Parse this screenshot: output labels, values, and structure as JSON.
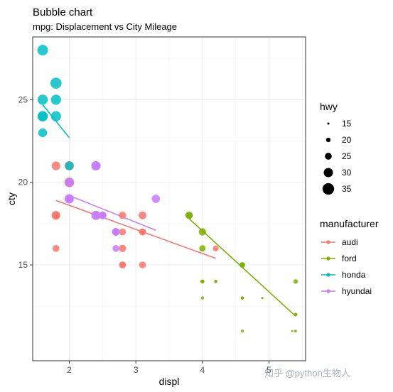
{
  "chart_data": {
    "type": "scatter",
    "title": "Bubble chart",
    "subtitle": "mpg: Displacement vs City Mileage",
    "xlabel": "displ",
    "ylabel": "cty",
    "xlim": [
      1.45,
      5.55
    ],
    "ylim": [
      9.2,
      28.8
    ],
    "x_ticks": [
      2,
      3,
      4,
      5
    ],
    "y_ticks": [
      15,
      20,
      25
    ],
    "grid": true,
    "legend_position": "right",
    "size_legend": {
      "title": "hwy",
      "entries": [
        {
          "label": "15",
          "value": 15
        },
        {
          "label": "20",
          "value": 20
        },
        {
          "label": "25",
          "value": 25
        },
        {
          "label": "30",
          "value": 30
        },
        {
          "label": "35",
          "value": 35
        }
      ]
    },
    "color_legend": {
      "title": "manufacturer",
      "entries": [
        {
          "label": "audi",
          "color": "#F8766D"
        },
        {
          "label": "ford",
          "color": "#7CAE00"
        },
        {
          "label": "honda",
          "color": "#00BFC4"
        },
        {
          "label": "hyundai",
          "color": "#C77CFF"
        }
      ]
    },
    "series": [
      {
        "name": "audi",
        "color": "#F8766D",
        "points": [
          {
            "x": 1.8,
            "y": 18,
            "size": 29
          },
          {
            "x": 1.8,
            "y": 21,
            "size": 29
          },
          {
            "x": 2.0,
            "y": 20,
            "size": 31
          },
          {
            "x": 2.0,
            "y": 21,
            "size": 30
          },
          {
            "x": 2.8,
            "y": 16,
            "size": 26
          },
          {
            "x": 2.8,
            "y": 18,
            "size": 26
          },
          {
            "x": 3.1,
            "y": 18,
            "size": 27
          },
          {
            "x": 1.8,
            "y": 18,
            "size": 26
          },
          {
            "x": 1.8,
            "y": 16,
            "size": 25
          },
          {
            "x": 2.0,
            "y": 20,
            "size": 28
          },
          {
            "x": 2.0,
            "y": 19,
            "size": 27
          },
          {
            "x": 2.8,
            "y": 15,
            "size": 25
          },
          {
            "x": 2.8,
            "y": 17,
            "size": 25
          },
          {
            "x": 3.1,
            "y": 17,
            "size": 25
          },
          {
            "x": 3.1,
            "y": 15,
            "size": 25
          },
          {
            "x": 2.8,
            "y": 15,
            "size": 24
          },
          {
            "x": 3.1,
            "y": 17,
            "size": 25
          },
          {
            "x": 4.2,
            "y": 16,
            "size": 23
          }
        ],
        "trend": [
          [
            1.8,
            18.9
          ],
          [
            4.2,
            15.4
          ]
        ]
      },
      {
        "name": "ford",
        "color": "#7CAE00",
        "points": [
          {
            "x": 3.8,
            "y": 18,
            "size": 26
          },
          {
            "x": 3.8,
            "y": 18,
            "size": 25
          },
          {
            "x": 4.0,
            "y": 17,
            "size": 26
          },
          {
            "x": 4.0,
            "y": 16,
            "size": 24
          },
          {
            "x": 4.6,
            "y": 15,
            "size": 22
          },
          {
            "x": 4.6,
            "y": 15,
            "size": 22
          },
          {
            "x": 5.4,
            "y": 14,
            "size": 20
          },
          {
            "x": 4.0,
            "y": 14,
            "size": 19
          },
          {
            "x": 4.0,
            "y": 13,
            "size": 17
          },
          {
            "x": 4.0,
            "y": 14,
            "size": 17
          },
          {
            "x": 4.2,
            "y": 14,
            "size": 17
          },
          {
            "x": 4.2,
            "y": 14,
            "size": 17
          },
          {
            "x": 4.6,
            "y": 13,
            "size": 17
          },
          {
            "x": 4.6,
            "y": 13,
            "size": 17
          },
          {
            "x": 4.6,
            "y": 13,
            "size": 17
          },
          {
            "x": 5.4,
            "y": 12,
            "size": 18
          },
          {
            "x": 5.4,
            "y": 11,
            "size": 16
          },
          {
            "x": 5.4,
            "y": 11,
            "size": 15
          },
          {
            "x": 4.6,
            "y": 11,
            "size": 17
          },
          {
            "x": 4.9,
            "y": 13,
            "size": 15
          },
          {
            "x": 5.4,
            "y": 12,
            "size": 15
          },
          {
            "x": 5.35,
            "y": 11,
            "size": 15
          }
        ],
        "trend": [
          [
            3.8,
            17.8
          ],
          [
            5.4,
            11.9
          ]
        ]
      },
      {
        "name": "honda",
        "color": "#00BFC4",
        "points": [
          {
            "x": 1.6,
            "y": 28,
            "size": 33
          },
          {
            "x": 1.6,
            "y": 24,
            "size": 32
          },
          {
            "x": 1.6,
            "y": 25,
            "size": 32
          },
          {
            "x": 1.6,
            "y": 23,
            "size": 29
          },
          {
            "x": 1.6,
            "y": 24,
            "size": 32
          },
          {
            "x": 1.8,
            "y": 26,
            "size": 34
          },
          {
            "x": 1.8,
            "y": 25,
            "size": 32
          },
          {
            "x": 1.8,
            "y": 24,
            "size": 32
          },
          {
            "x": 2.0,
            "y": 21,
            "size": 29
          }
        ],
        "trend": [
          [
            1.6,
            24.7
          ],
          [
            2.0,
            22.7
          ]
        ]
      },
      {
        "name": "hyundai",
        "color": "#C77CFF",
        "points": [
          {
            "x": 2.0,
            "y": 19,
            "size": 30
          },
          {
            "x": 2.0,
            "y": 20,
            "size": 29
          },
          {
            "x": 2.0,
            "y": 19,
            "size": 29
          },
          {
            "x": 2.0,
            "y": 20,
            "size": 28
          },
          {
            "x": 2.4,
            "y": 21,
            "size": 30
          },
          {
            "x": 2.4,
            "y": 21,
            "size": 30
          },
          {
            "x": 2.5,
            "y": 18,
            "size": 27
          },
          {
            "x": 2.5,
            "y": 18,
            "size": 26
          },
          {
            "x": 2.7,
            "y": 17,
            "size": 27
          },
          {
            "x": 2.7,
            "y": 16,
            "size": 25
          },
          {
            "x": 2.4,
            "y": 18,
            "size": 29
          },
          {
            "x": 3.3,
            "y": 19,
            "size": 28
          },
          {
            "x": 2.7,
            "y": 17,
            "size": 26
          },
          {
            "x": 2.4,
            "y": 18,
            "size": 30
          }
        ],
        "trend": [
          [
            2.0,
            19.2
          ],
          [
            3.3,
            17.1
          ]
        ]
      }
    ]
  },
  "watermark": "知乎 @python生物人"
}
